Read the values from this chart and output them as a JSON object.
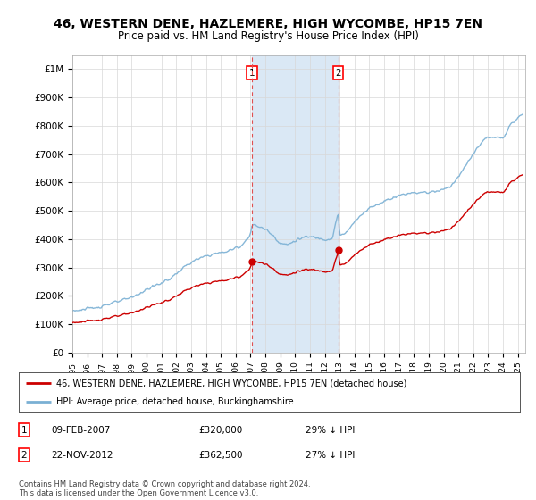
{
  "title": "46, WESTERN DENE, HAZLEMERE, HIGH WYCOMBE, HP15 7EN",
  "subtitle": "Price paid vs. HM Land Registry's House Price Index (HPI)",
  "title_fontsize": 10,
  "subtitle_fontsize": 8.5,
  "ylabel_ticks": [
    "£0",
    "£100K",
    "£200K",
    "£300K",
    "£400K",
    "£500K",
    "£600K",
    "£700K",
    "£800K",
    "£900K",
    "£1M"
  ],
  "ytick_values": [
    0,
    100000,
    200000,
    300000,
    400000,
    500000,
    600000,
    700000,
    800000,
    900000,
    1000000
  ],
  "ylim": [
    0,
    1050000
  ],
  "xlim_start": 1995.0,
  "xlim_end": 2025.5,
  "sale1_date": 2007.1,
  "sale1_price": 320000,
  "sale1_label": "1",
  "sale2_date": 2012.9,
  "sale2_price": 362500,
  "sale2_label": "2",
  "hpi_color": "#7ab0d4",
  "sale_color": "#cc0000",
  "sale_marker_color": "#cc0000",
  "grid_color": "#d8d8d8",
  "shaded_region_color": "#dae8f5",
  "legend_label_red": "46, WESTERN DENE, HAZLEMERE, HIGH WYCOMBE, HP15 7EN (detached house)",
  "legend_label_blue": "HPI: Average price, detached house, Buckinghamshire",
  "footer": "Contains HM Land Registry data © Crown copyright and database right 2024.\nThis data is licensed under the Open Government Licence v3.0.",
  "background_color": "#ffffff"
}
